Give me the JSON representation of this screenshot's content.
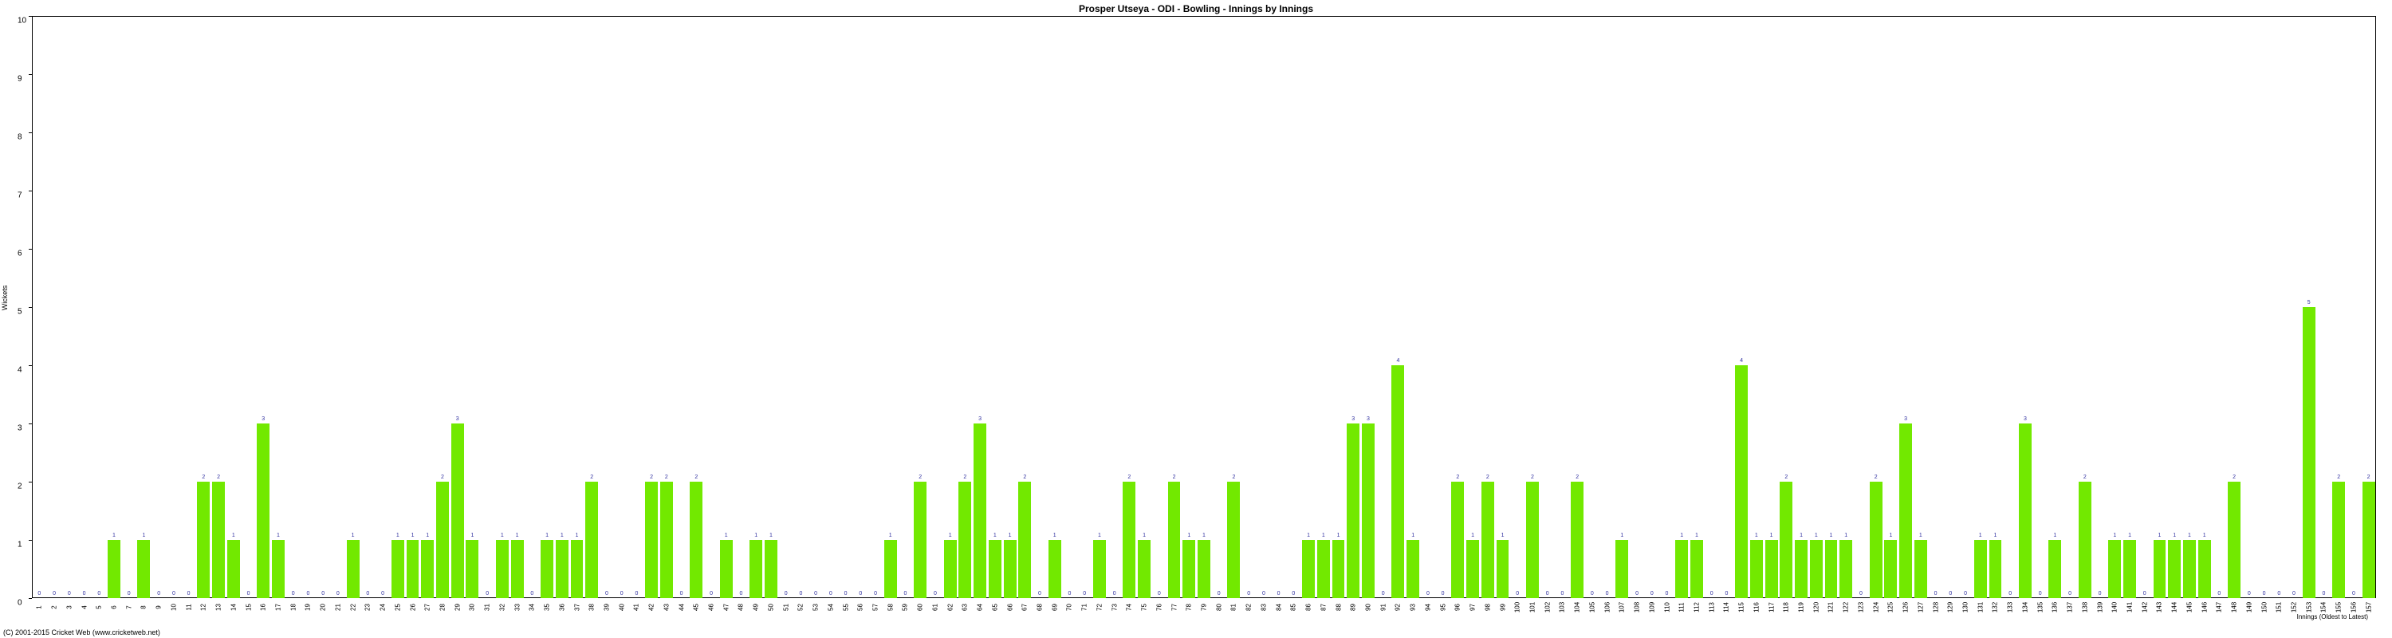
{
  "chart": {
    "type": "bar",
    "title": "Prosper Utseya - ODI - Bowling - Innings by Innings",
    "ylabel": "Wickets",
    "xlabel": "Innings (Oldest to Latest)",
    "ylim": [
      0,
      10
    ],
    "ytick_step": 1,
    "background_color": "#ffffff",
    "bar_color": "#72e900",
    "value_label_color": "#3030a0",
    "axis_color": "#000000",
    "title_fontsize": 12,
    "label_fontsize": 9,
    "tick_fontsize": 10,
    "value_fontsize": 7,
    "values": [
      0,
      0,
      0,
      0,
      0,
      1,
      0,
      1,
      0,
      0,
      0,
      2,
      2,
      1,
      0,
      3,
      1,
      0,
      0,
      0,
      0,
      1,
      0,
      0,
      1,
      1,
      1,
      2,
      3,
      1,
      0,
      1,
      1,
      0,
      1,
      1,
      1,
      2,
      0,
      0,
      0,
      2,
      2,
      0,
      2,
      0,
      1,
      0,
      1,
      1,
      0,
      0,
      0,
      0,
      0,
      0,
      0,
      1,
      0,
      2,
      0,
      1,
      2,
      3,
      1,
      1,
      2,
      0,
      1,
      0,
      0,
      1,
      0,
      2,
      1,
      0,
      2,
      1,
      1,
      0,
      2,
      0,
      0,
      0,
      0,
      1,
      1,
      1,
      3,
      3,
      0,
      4,
      1,
      0,
      0,
      2,
      1,
      2,
      1,
      0,
      2,
      0,
      0,
      2,
      0,
      0,
      1,
      0,
      0,
      0,
      1,
      1,
      0,
      0,
      4,
      1,
      1,
      2,
      1,
      1,
      1,
      1,
      0,
      2,
      1,
      3,
      1,
      0,
      0,
      0,
      1,
      1,
      0,
      3,
      0,
      1,
      0,
      2,
      0,
      1,
      1,
      0,
      1,
      1,
      1,
      1,
      0,
      2,
      0,
      0,
      0,
      0,
      5,
      0,
      2,
      0,
      2
    ],
    "copyright": "(C) 2001-2015 Cricket Web (www.cricketweb.net)"
  }
}
